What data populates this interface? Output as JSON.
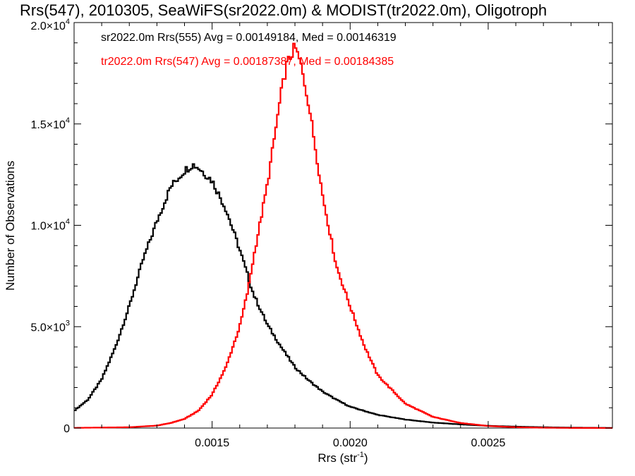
{
  "chart_data": {
    "type": "line",
    "title": "Rrs(547), 2010305, SeaWiFS(sr2022.0m) & MODIST(tr2022.0m), Oligotroph",
    "xlabel": {
      "base": "Rrs (str",
      "sup": "-1",
      "close": ")"
    },
    "ylabel": "Number of Observations",
    "xlim": [
      0.001,
      0.00295
    ],
    "ylim": [
      0,
      20000
    ],
    "x_ticks": [
      {
        "value": 0.0015,
        "label": "0.0015"
      },
      {
        "value": 0.002,
        "label": "0.0020"
      },
      {
        "value": 0.0025,
        "label": "0.0025"
      }
    ],
    "y_ticks": [
      {
        "value": 0,
        "mant": "0",
        "exp": ""
      },
      {
        "value": 5000,
        "mant": "5.0×10",
        "exp": "3"
      },
      {
        "value": 10000,
        "mant": "1.0×10",
        "exp": "4"
      },
      {
        "value": 15000,
        "mant": "1.5×10",
        "exp": "4"
      },
      {
        "value": 20000,
        "mant": "2.0×10",
        "exp": "4"
      }
    ],
    "grid": false,
    "legend_position": "top-left",
    "series": [
      {
        "name": "sr2022.0m Rrs(555) Avg = 0.00149184, Med = 0.00146319",
        "color": "#000000",
        "x": [
          0.001,
          0.00105,
          0.0011,
          0.00115,
          0.0012,
          0.00125,
          0.0013,
          0.00135,
          0.0014,
          0.00143,
          0.00145,
          0.0015,
          0.00155,
          0.0016,
          0.00165,
          0.0017,
          0.00175,
          0.0018,
          0.00185,
          0.0019,
          0.00195,
          0.002,
          0.0021,
          0.0022,
          0.0023,
          0.0024,
          0.0025,
          0.0026,
          0.0027,
          0.0028,
          0.00295
        ],
        "y": [
          850,
          1400,
          2400,
          4000,
          6000,
          8300,
          10200,
          11900,
          12700,
          13000,
          12850,
          12200,
          10800,
          8800,
          6600,
          5100,
          4000,
          3000,
          2350,
          1800,
          1400,
          1050,
          650,
          420,
          270,
          180,
          110,
          70,
          40,
          20,
          5
        ]
      },
      {
        "name": "tr2022.0m Rrs(547) Avg = 0.00187387, Med = 0.00184385",
        "color": "#ff0000",
        "x": [
          0.001,
          0.0012,
          0.0013,
          0.00135,
          0.0014,
          0.00145,
          0.0015,
          0.00155,
          0.0016,
          0.00163,
          0.00165,
          0.0017,
          0.00172,
          0.00175,
          0.00177,
          0.0018,
          0.00182,
          0.00185,
          0.0019,
          0.00195,
          0.002,
          0.00205,
          0.0021,
          0.0022,
          0.0023,
          0.0024,
          0.0025,
          0.0026,
          0.0027,
          0.0028,
          0.00295
        ],
        "y": [
          10,
          40,
          120,
          250,
          450,
          850,
          1650,
          3000,
          5000,
          6800,
          8400,
          12000,
          13800,
          16500,
          17900,
          18800,
          18000,
          16000,
          11500,
          8000,
          6000,
          4100,
          2600,
          1200,
          550,
          250,
          100,
          40,
          15,
          5,
          2
        ]
      }
    ]
  }
}
